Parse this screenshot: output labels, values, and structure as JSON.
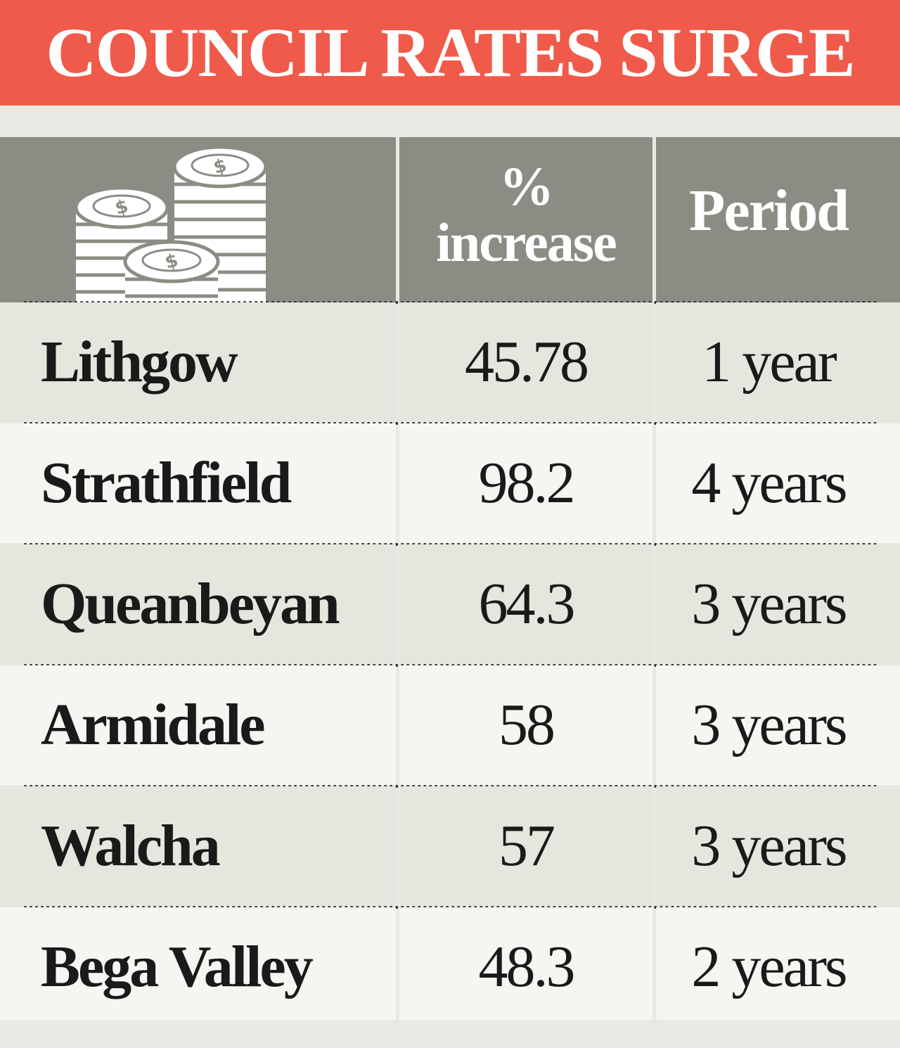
{
  "title": "COUNCIL RATES SURGE",
  "header": {
    "icon": "coins-dollar-icon",
    "pct_line1": "%",
    "pct_line2": "increase",
    "period": "Period"
  },
  "colors": {
    "banner": "#f05a4a",
    "header_bg": "#8c8c85",
    "row_odd": "#e6e5de",
    "row_even": "#f5f5f2",
    "text": "#1a1a1a"
  },
  "chart_data": {
    "type": "table",
    "title": "COUNCIL RATES SURGE",
    "columns": [
      "",
      "% increase",
      "Period"
    ],
    "rows": [
      {
        "council": "Lithgow",
        "increase": "45.78",
        "period": "1 year"
      },
      {
        "council": "Strathfield",
        "increase": "98.2",
        "period": "4 years"
      },
      {
        "council": "Queanbeyan",
        "increase": "64.3",
        "period": "3 years"
      },
      {
        "council": "Armidale",
        "increase": "58",
        "period": "3 years"
      },
      {
        "council": "Walcha",
        "increase": "57",
        "period": "3 years"
      },
      {
        "council": "Bega Valley",
        "increase": "48.3",
        "period": "2 years"
      }
    ]
  }
}
